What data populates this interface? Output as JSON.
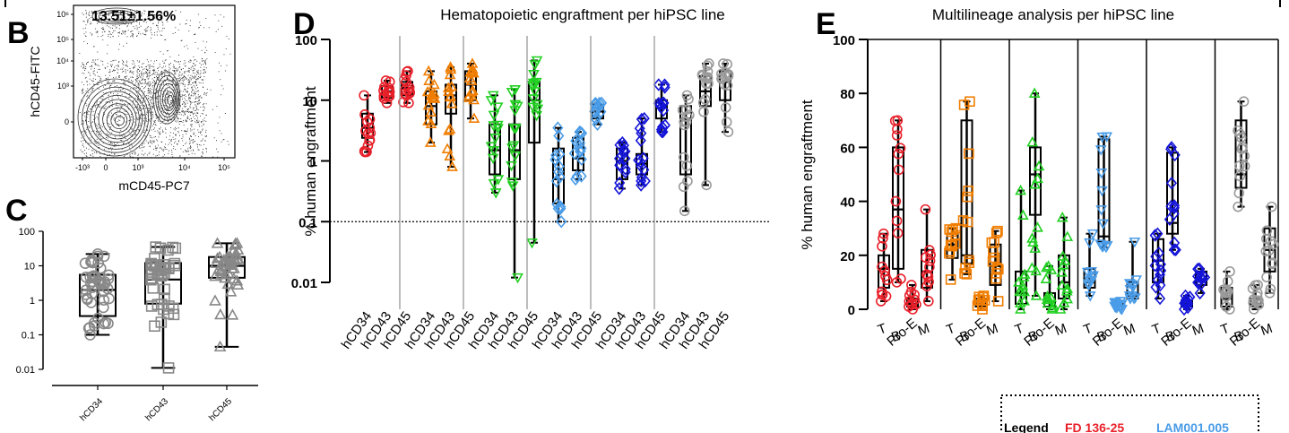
{
  "panel_labels": {
    "B": "B",
    "C": "C",
    "D": "D",
    "E": "E"
  },
  "colors": {
    "red": "#e8202a",
    "orange": "#f07d00",
    "green": "#22d022",
    "lightblue": "#4a9ce8",
    "blue": "#1414d8",
    "gray": "#9a9a9a",
    "black": "#000000"
  },
  "panel_B": {
    "annotation": "13.51±1.56%",
    "ylabel": "hCD45-FITC",
    "xlabel": "mCD45-PC7",
    "yticks": [
      "10⁶",
      "10⁵",
      "10⁴",
      "10³",
      "0"
    ],
    "xticks": [
      "-10³",
      "0",
      "10³",
      "10⁴",
      "10⁵"
    ]
  },
  "legend": {
    "title": "Legend",
    "entries": [
      {
        "label": "FD 136-25",
        "color": "#e8202a"
      },
      {
        "label": "LAM001.005",
        "color": "#4a9ce8"
      }
    ]
  },
  "chart_data": [
    {
      "panel": "C",
      "type": "box",
      "title": "",
      "xlabel": "",
      "ylabel": "",
      "yscale": "log",
      "ylim": [
        0.01,
        100
      ],
      "yticks": [
        "0.01",
        "0.1",
        "1",
        "10",
        "100"
      ],
      "categories": [
        "hCD34",
        "hCD43",
        "hCD45"
      ],
      "boxes": [
        {
          "min": 0.1,
          "q1": 0.35,
          "median": 2.0,
          "q3": 5.5,
          "max": 22,
          "marker": "circle"
        },
        {
          "min": 0.011,
          "q1": 0.8,
          "median": 4.0,
          "q3": 12,
          "max": 35,
          "marker": "square"
        },
        {
          "min": 0.045,
          "q1": 4.5,
          "median": 10,
          "q3": 18,
          "max": 45,
          "marker": "triangle-up"
        }
      ]
    },
    {
      "panel": "D",
      "type": "box",
      "title": "Hematopoietic engraftment per hiPSC line",
      "xlabel": "",
      "ylabel": "% human engraftment",
      "yscale": "log",
      "ylim": [
        0.01,
        100
      ],
      "yticks": [
        "0.01",
        "0.1",
        "1",
        "10",
        "100"
      ],
      "threshold": 0.1,
      "categories": [
        "hCD34",
        "hCD43",
        "hCD45"
      ],
      "groups": [
        {
          "color": "#e8202a",
          "marker": "circle",
          "boxes": [
            {
              "min": 1.4,
              "q1": 2.4,
              "median": 3.5,
              "q3": 6,
              "max": 12
            },
            {
              "min": 9,
              "q1": 11,
              "median": 14,
              "q3": 17,
              "max": 21
            },
            {
              "min": 9,
              "q1": 12,
              "median": 16,
              "q3": 20,
              "max": 30
            }
          ]
        },
        {
          "color": "#f07d00",
          "marker": "triangle-up",
          "boxes": [
            {
              "min": 2,
              "q1": 4,
              "median": 8,
              "q3": 14,
              "max": 30
            },
            {
              "min": 0.8,
              "q1": 6,
              "median": 12,
              "q3": 18,
              "max": 35
            },
            {
              "min": 5,
              "q1": 10,
              "median": 18,
              "q3": 30,
              "max": 40
            }
          ]
        },
        {
          "color": "#22d022",
          "marker": "triangle-down",
          "boxes": [
            {
              "min": 0.3,
              "q1": 0.6,
              "median": 1.5,
              "q3": 4,
              "max": 12
            },
            {
              "min": 0.012,
              "q1": 0.5,
              "median": 1.5,
              "q3": 4,
              "max": 15
            },
            {
              "min": 0.045,
              "q1": 2,
              "median": 10,
              "q3": 20,
              "max": 45
            }
          ]
        },
        {
          "color": "#4a9ce8",
          "marker": "diamond",
          "boxes": [
            {
              "min": 0.1,
              "q1": 0.2,
              "median": 0.5,
              "q3": 1.6,
              "max": 3.5
            },
            {
              "min": 0.5,
              "q1": 0.7,
              "median": 1.1,
              "q3": 2.4,
              "max": 3
            },
            {
              "min": 4,
              "q1": 5,
              "median": 6.5,
              "q3": 8.5,
              "max": 9
            }
          ]
        },
        {
          "color": "#1414d8",
          "marker": "diamond",
          "boxes": [
            {
              "min": 0.35,
              "q1": 0.5,
              "median": 1.0,
              "q3": 1.6,
              "max": 2
            },
            {
              "min": 0.4,
              "q1": 0.6,
              "median": 0.9,
              "q3": 1.3,
              "max": 5
            },
            {
              "min": 3,
              "q1": 5,
              "median": 7.5,
              "q3": 10,
              "max": 18
            }
          ]
        },
        {
          "color": "#9a9a9a",
          "marker": "circle",
          "boxes": [
            {
              "min": 0.15,
              "q1": 0.6,
              "median": 5,
              "q3": 8,
              "max": 12
            },
            {
              "min": 0.4,
              "q1": 8,
              "median": 14,
              "q3": 25,
              "max": 40
            },
            {
              "min": 3,
              "q1": 10,
              "median": 20,
              "q3": 30,
              "max": 40
            }
          ]
        }
      ]
    },
    {
      "panel": "E",
      "type": "box",
      "title": "Multilineage analysis per hiPSC line",
      "xlabel": "",
      "ylabel": "% human engraftment",
      "yscale": "linear",
      "ylim": [
        0,
        100
      ],
      "yticks": [
        "0",
        "20",
        "40",
        "60",
        "80",
        "100"
      ],
      "categories": [
        "T",
        "B",
        "Pro-E",
        "M"
      ],
      "groups": [
        {
          "color": "#e8202a",
          "marker": "circle",
          "boxes": [
            {
              "min": 3,
              "q1": 8,
              "median": 15,
              "q3": 20,
              "max": 28
            },
            {
              "min": 10,
              "q1": 15,
              "median": 37,
              "q3": 60,
              "max": 70
            },
            {
              "min": 0,
              "q1": 1,
              "median": 2,
              "q3": 4,
              "max": 9
            },
            {
              "min": 3,
              "q1": 8,
              "median": 14,
              "q3": 22,
              "max": 37
            }
          ]
        },
        {
          "color": "#f07d00",
          "marker": "square",
          "boxes": [
            {
              "min": 11,
              "q1": 19,
              "median": 24,
              "q3": 28,
              "max": 30
            },
            {
              "min": 13,
              "q1": 17,
              "median": 20,
              "q3": 70,
              "max": 77
            },
            {
              "min": 0,
              "q1": 1,
              "median": 2,
              "q3": 4,
              "max": 5
            },
            {
              "min": 3,
              "q1": 9,
              "median": 16,
              "q3": 24,
              "max": 29
            }
          ]
        },
        {
          "color": "#22d022",
          "marker": "triangle-up",
          "boxes": [
            {
              "min": 0,
              "q1": 2,
              "median": 6,
              "q3": 14,
              "max": 44
            },
            {
              "min": 5,
              "q1": 35,
              "median": 50,
              "q3": 60,
              "max": 80
            },
            {
              "min": 0,
              "q1": 1,
              "median": 3,
              "q3": 6,
              "max": 16
            },
            {
              "min": 0,
              "q1": 4,
              "median": 10,
              "q3": 20,
              "max": 34
            }
          ]
        },
        {
          "color": "#4a9ce8",
          "marker": "triangle-down",
          "boxes": [
            {
              "min": 5,
              "q1": 8,
              "median": 10,
              "q3": 15,
              "max": 28
            },
            {
              "min": 23,
              "q1": 25,
              "median": 27,
              "q3": 63,
              "max": 64
            },
            {
              "min": 0,
              "q1": 1,
              "median": 2,
              "q3": 2,
              "max": 3
            },
            {
              "min": 4,
              "q1": 4,
              "median": 5,
              "q3": 10,
              "max": 25
            }
          ]
        },
        {
          "color": "#1414d8",
          "marker": "diamond",
          "boxes": [
            {
              "min": 4,
              "q1": 10,
              "median": 18,
              "q3": 26,
              "max": 28
            },
            {
              "min": 22,
              "q1": 28,
              "median": 32,
              "q3": 58,
              "max": 60
            },
            {
              "min": 0,
              "q1": 1,
              "median": 2,
              "q3": 3,
              "max": 5
            },
            {
              "min": 6,
              "q1": 9,
              "median": 11,
              "q3": 14,
              "max": 15
            }
          ]
        },
        {
          "color": "#9a9a9a",
          "marker": "circle",
          "boxes": [
            {
              "min": 0,
              "q1": 1,
              "median": 4,
              "q3": 8,
              "max": 14
            },
            {
              "min": 38,
              "q1": 45,
              "median": 50,
              "q3": 70,
              "max": 77
            },
            {
              "min": 0,
              "q1": 1,
              "median": 2,
              "q3": 4,
              "max": 9
            },
            {
              "min": 6,
              "q1": 14,
              "median": 22,
              "q3": 30,
              "max": 38
            }
          ]
        }
      ]
    }
  ]
}
